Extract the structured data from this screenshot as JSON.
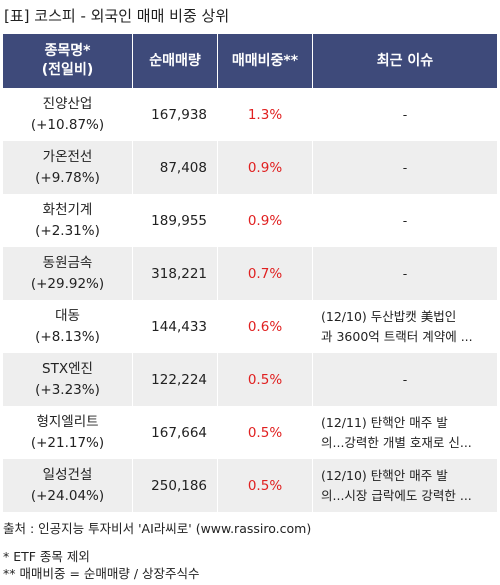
{
  "title": "[표] 코스피 - 외국인 매매 비중 상위",
  "header": {
    "col1": "종목명*\n(전일비)",
    "col2": "순매매량",
    "col3": "매매비중**",
    "col4": "최근 이슈"
  },
  "rows": [
    {
      "name": "진양산업",
      "change": "(+10.87%)",
      "volume": "167,938",
      "ratio": "1.3%",
      "issue": "-"
    },
    {
      "name": "가온전선",
      "change": "(+9.78%)",
      "volume": "87,408",
      "ratio": "0.9%",
      "issue": "-"
    },
    {
      "name": "화천기계",
      "change": "(+2.31%)",
      "volume": "189,955",
      "ratio": "0.9%",
      "issue": "-"
    },
    {
      "name": "동원금속",
      "change": "(+29.92%)",
      "volume": "318,221",
      "ratio": "0.7%",
      "issue": "-"
    },
    {
      "name": "대동",
      "change": "(+8.13%)",
      "volume": "144,433",
      "ratio": "0.6%",
      "issue": "(12/10) 두산밥캣 美법인\n과 3600억 트랙터 계약에 ..."
    },
    {
      "name": "STX엔진",
      "change": "(+3.23%)",
      "volume": "122,224",
      "ratio": "0.5%",
      "issue": "-"
    },
    {
      "name": "형지엘리트",
      "change": "(+21.17%)",
      "volume": "167,664",
      "ratio": "0.5%",
      "issue": "(12/11) 탄핵안 매주 발\n의...강력한 개별 호재로 신..."
    },
    {
      "name": "일성건설",
      "change": "(+24.04%)",
      "volume": "250,186",
      "ratio": "0.5%",
      "issue": "(12/10) 탄핵안 매주 발\n의...시장 급락에도 강력한 ..."
    }
  ],
  "footer": {
    "source": "출처 : 인공지능 투자비서 'AI라씨로' (www.rassiro.com)",
    "note1": "* ETF 종목 제외",
    "note2": "** 매매비중 = 순매매량 / 상장주식수"
  },
  "colors": {
    "header_bg": "#3e4a7a",
    "ratio_red": "#e02020",
    "row_alt": "#eeeeee"
  }
}
